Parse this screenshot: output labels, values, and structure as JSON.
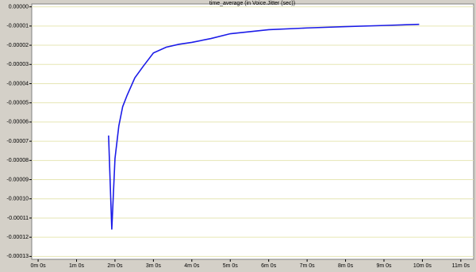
{
  "chart_data": {
    "type": "line",
    "title": "time_average (in Voice.Jitter (sec))",
    "x": [
      110,
      115,
      120,
      126,
      132,
      139,
      151,
      164,
      180,
      200,
      220,
      240,
      270,
      300,
      360,
      420,
      480,
      540,
      595
    ],
    "series": [
      {
        "name": "time_average",
        "color": "#1c1ce8",
        "values": [
          -6.7e-05,
          -0.000116,
          -7.9e-05,
          -6.2e-05,
          -5.2e-05,
          -4.6e-05,
          -3.7e-05,
          -3.1e-05,
          -2.4e-05,
          -2.1e-05,
          -1.95e-05,
          -1.85e-05,
          -1.65e-05,
          -1.4e-05,
          -1.19e-05,
          -1.1e-05,
          -1.03e-05,
          -9.7e-06,
          -9.1e-06
        ]
      }
    ],
    "xlim": [
      -10,
      680
    ],
    "xticks": [
      {
        "value": 0,
        "label": "0m 0s"
      },
      {
        "value": 60,
        "label": "1m 0s"
      },
      {
        "value": 120,
        "label": "2m 0s"
      },
      {
        "value": 180,
        "label": "3m 0s"
      },
      {
        "value": 240,
        "label": "4m 0s"
      },
      {
        "value": 300,
        "label": "5m 0s"
      },
      {
        "value": 360,
        "label": "6m 0s"
      },
      {
        "value": 420,
        "label": "7m 0s"
      },
      {
        "value": 480,
        "label": "8m 0s"
      },
      {
        "value": 540,
        "label": "9m 0s"
      },
      {
        "value": 600,
        "label": "10m 0s"
      },
      {
        "value": 660,
        "label": "11m 0s"
      }
    ],
    "ylim": [
      -0.0001315,
      1.5e-06
    ],
    "yticks": [
      {
        "value": 0,
        "label": "0.00000"
      },
      -1e-05,
      -2e-05,
      -3e-05,
      -4e-05,
      -5e-05,
      -6e-05,
      -7e-05,
      -8e-05,
      -9e-05,
      {
        "value": -0.0001,
        "label": "-0.00010"
      },
      {
        "value": -0.00011,
        "label": "-0.00011"
      },
      {
        "value": -0.00012,
        "label": "-0.00012"
      },
      {
        "value": -0.00013,
        "label": "-0.00013"
      }
    ],
    "grid": true
  }
}
